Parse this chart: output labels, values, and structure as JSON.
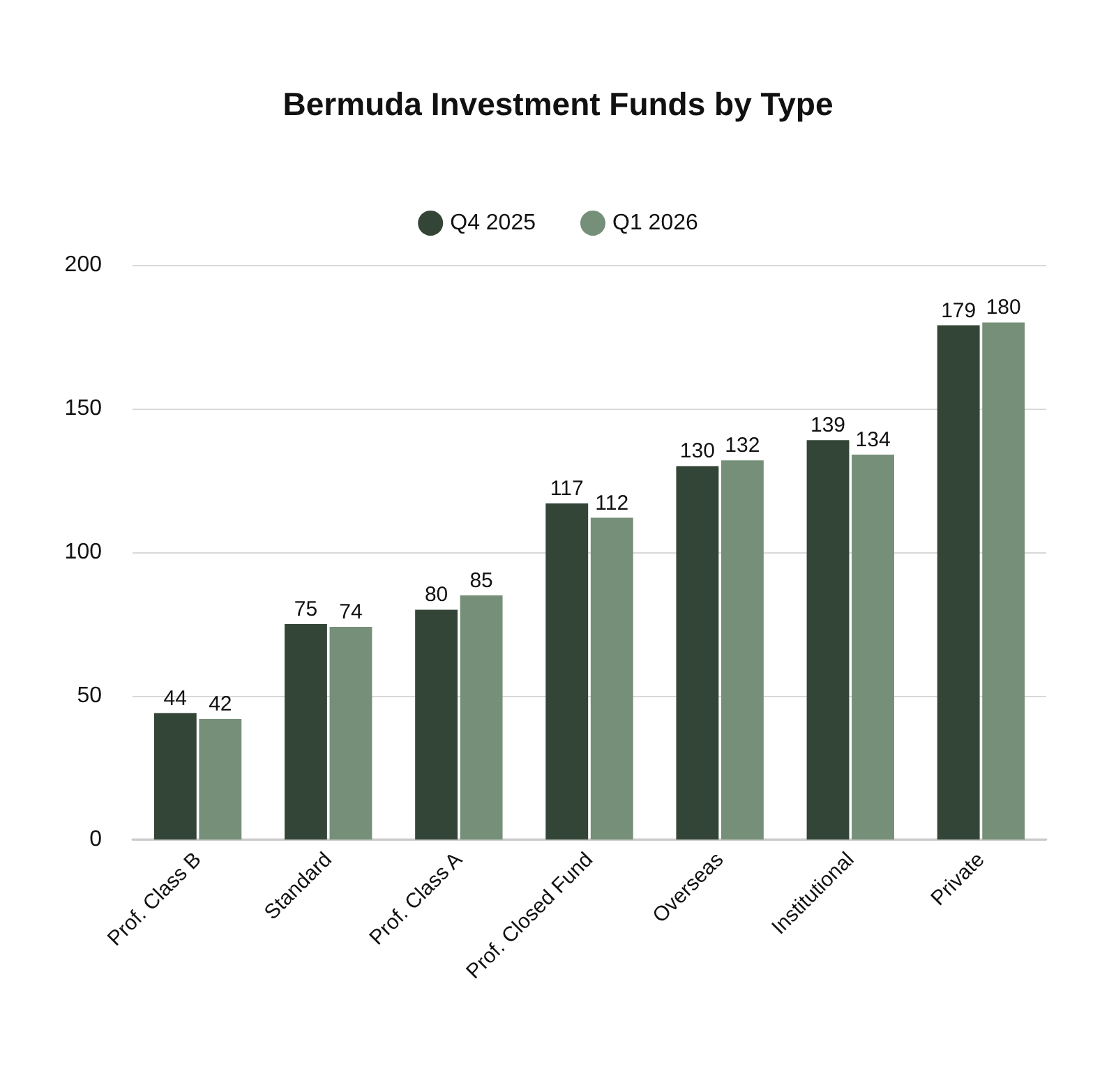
{
  "chart_data": {
    "type": "bar",
    "title": "Bermuda Investment Funds by Type",
    "categories": [
      "Prof. Class B",
      "Standard",
      "Prof. Class A",
      "Prof. Closed Fund",
      "Overseas",
      "Institutional",
      "Private"
    ],
    "series": [
      {
        "name": "Q4 2025",
        "color": "#334536",
        "values": [
          44,
          75,
          80,
          117,
          130,
          139,
          179
        ]
      },
      {
        "name": "Q1 2026",
        "color": "#768f78",
        "values": [
          42,
          74,
          85,
          112,
          132,
          134,
          180
        ]
      }
    ],
    "ylim": [
      0,
      200
    ],
    "yticks": [
      0,
      50,
      100,
      150,
      200
    ],
    "grid": "y",
    "legend": "top",
    "data_labels": true
  }
}
